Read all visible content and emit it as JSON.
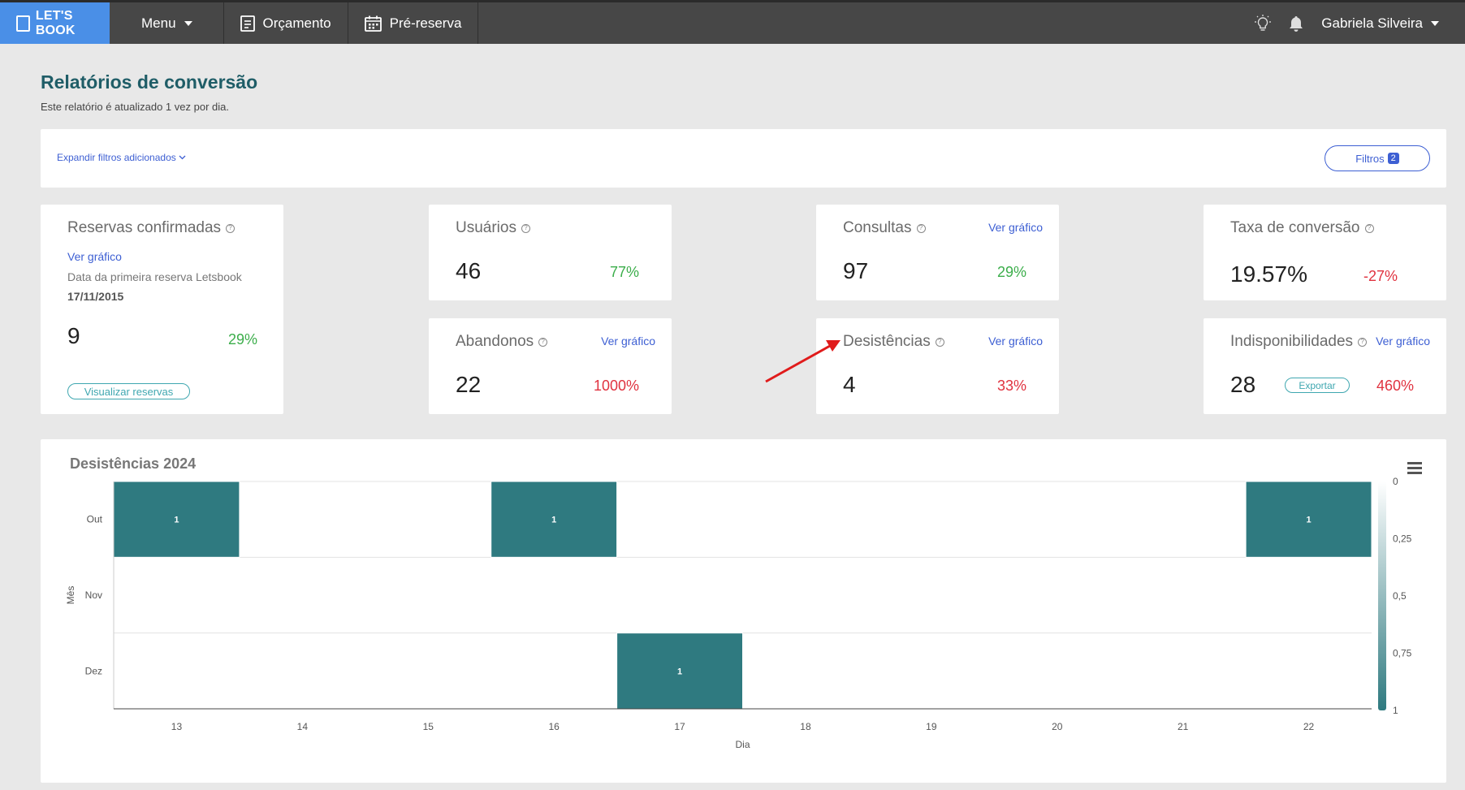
{
  "nav": {
    "brand": "LET'S BOOK",
    "menu_label": "Menu",
    "orcamento_label": "Orçamento",
    "prereserva_label": "Pré-reserva",
    "user_name": "Gabriela Silveira",
    "brand_color": "#4a8fe7"
  },
  "header": {
    "title": "Relatórios de conversão",
    "subtitle": "Este relatório é atualizado 1 vez por dia."
  },
  "filters": {
    "expand_label": "Expandir filtros adicionados",
    "button_label": "Filtros",
    "count": "2"
  },
  "cards": {
    "reservas": {
      "title": "Reservas confirmadas",
      "link": "Ver gráfico",
      "first_label": "Data da primeira reserva Letsbook",
      "first_date": "17/11/2015",
      "value": "9",
      "pct": "29%",
      "button": "Visualizar reservas"
    },
    "usuarios": {
      "title": "Usuários",
      "value": "46",
      "pct": "77%"
    },
    "consultas": {
      "title": "Consultas",
      "link": "Ver gráfico",
      "value": "97",
      "pct": "29%"
    },
    "taxa": {
      "title": "Taxa de conversão",
      "value": "19.57%",
      "pct": "-27%"
    },
    "abandonos": {
      "title": "Abandonos",
      "link": "Ver gráfico",
      "value": "22",
      "pct": "1000%"
    },
    "desistencias": {
      "title": "Desistências",
      "link": "Ver gráfico",
      "value": "4",
      "pct": "33%"
    },
    "indisponibilidades": {
      "title": "Indisponibilidades",
      "link": "Ver gráfico",
      "value": "28",
      "pct": "460%",
      "button": "Exportar"
    }
  },
  "chart_data": {
    "type": "heatmap",
    "title": "Desistências 2024",
    "xlabel": "Dia",
    "ylabel": "Mês",
    "x": [
      "13",
      "14",
      "15",
      "16",
      "17",
      "18",
      "19",
      "20",
      "21",
      "22"
    ],
    "y": [
      "Out",
      "Nov",
      "Dez"
    ],
    "cells": [
      {
        "x": "13",
        "y": "Out",
        "value": 1
      },
      {
        "x": "16",
        "y": "Out",
        "value": 1
      },
      {
        "x": "22",
        "y": "Out",
        "value": 1
      },
      {
        "x": "17",
        "y": "Dez",
        "value": 1
      }
    ],
    "colorbar": {
      "ticks": [
        "0",
        "0,25",
        "0,5",
        "0,75",
        "1"
      ],
      "min_color": "#ffffff",
      "max_color": "#2f7a80"
    }
  }
}
